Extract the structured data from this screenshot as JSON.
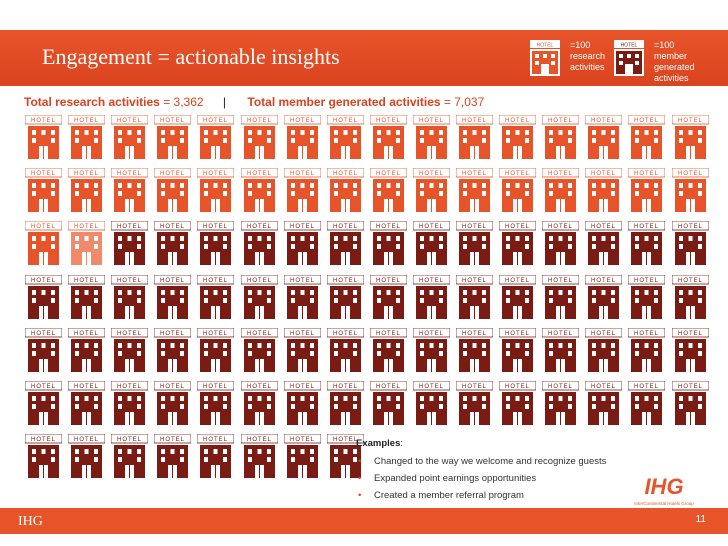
{
  "slide": {
    "title": "Engagement = actionable insights",
    "page_number": "11",
    "footer_brand": "IHG"
  },
  "legend": {
    "research": {
      "label": "=100 research activities",
      "color": "#e8542a",
      "icon": "hotel-icon"
    },
    "member": {
      "label": "=100 member generated activities",
      "color": "#7a1c14",
      "icon": "hotel-icon"
    }
  },
  "totals": {
    "research_label": "Total research activities",
    "research_value": "= 3,362",
    "separator": "|",
    "member_label": "Total member generated activities",
    "member_value": "= 7,037"
  },
  "hotel_sign": "HOTEL",
  "grid": {
    "research_count": 34,
    "member_count": 70,
    "faded_partial": 1,
    "layout": "16 columns, 7 rows, last row partial"
  },
  "examples": {
    "title": "Examples",
    "items": [
      "Changed to the way we welcome and recognize guests",
      "Expanded point earnings opportunities",
      "Created a member referral program"
    ]
  },
  "logo": {
    "main": "IHG",
    "tagline": "InterContinental Hotels Group"
  }
}
